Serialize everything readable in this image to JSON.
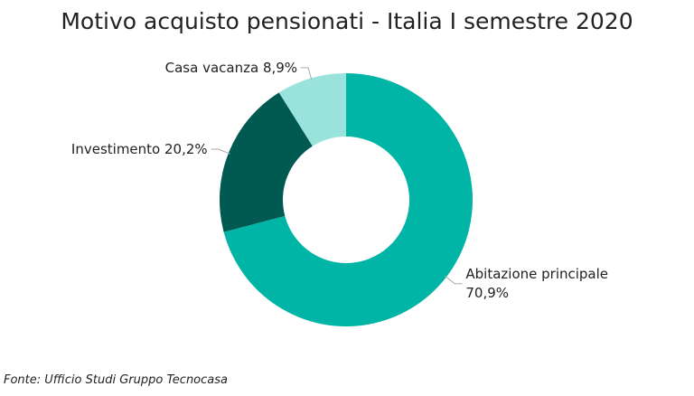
{
  "chart_data": {
    "type": "donut",
    "title": "Motivo acquisto pensionati - Italia I semestre 2020",
    "categories": [
      "Abitazione principale",
      "Investimento",
      "Casa vacanza"
    ],
    "values": [
      70.9,
      20.2,
      8.9
    ],
    "value_labels": [
      "70,9%",
      "20,2%",
      "8,9%"
    ],
    "colors": [
      "#00b5a5",
      "#005a52",
      "#99e3dc"
    ],
    "source": "Fonte: Ufficio Studi Gruppo Tecnocasa"
  }
}
